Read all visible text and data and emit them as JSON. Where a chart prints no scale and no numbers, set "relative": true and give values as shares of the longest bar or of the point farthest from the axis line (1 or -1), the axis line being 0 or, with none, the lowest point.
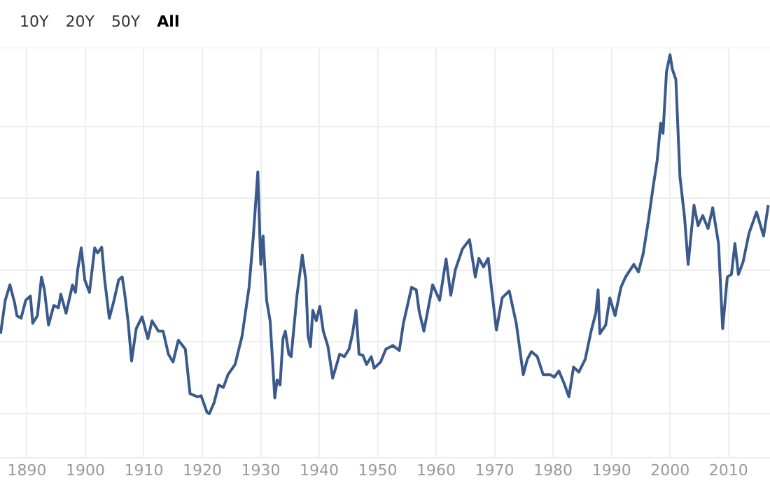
{
  "chart_data": {
    "type": "line",
    "relative": true,
    "annotations": [
      "10Y",
      "20Y",
      "50Y",
      "All"
    ],
    "xlim": [
      1885.4,
      2017.1
    ],
    "xticks": [
      1890,
      1900,
      1910,
      1920,
      1930,
      1940,
      1950,
      1960,
      1970,
      1980,
      1990,
      2000,
      2010
    ],
    "grid": true,
    "legend": false,
    "marker": "none",
    "line_style": "solid",
    "series": [
      {
        "color": "#3a5a8c",
        "x": [
          1885.5,
          1886.3,
          1887.1,
          1887.9,
          1888.3,
          1889,
          1889.8,
          1890.6,
          1891,
          1891.8,
          1892.5,
          1893,
          1893.7,
          1894.6,
          1895.4,
          1895.8,
          1896.7,
          1897.8,
          1898.3,
          1898.7,
          1899.3,
          1899.9,
          1900.7,
          1901.6,
          1902.1,
          1902.8,
          1903.3,
          1904.1,
          1904.9,
          1905.7,
          1906.3,
          1906.7,
          1907.3,
          1907.9,
          1908.7,
          1909.7,
          1910.7,
          1911.4,
          1912.5,
          1913.3,
          1914.2,
          1915,
          1915.9,
          1917.1,
          1917.9,
          1919.2,
          1919.8,
          1920.8,
          1921.2,
          1922,
          1922.8,
          1923.6,
          1924.4,
          1925.6,
          1926.8,
          1928,
          1928.7,
          1929.5,
          1930,
          1930.4,
          1931,
          1931.6,
          1932.4,
          1932.8,
          1933.3,
          1933.8,
          1934.2,
          1934.8,
          1935.2,
          1936.2,
          1937.1,
          1937.7,
          1938.1,
          1938.5,
          1938.9,
          1939.5,
          1940.1,
          1940.7,
          1941.5,
          1942.3,
          1943.5,
          1944.3,
          1945.1,
          1945.7,
          1946.3,
          1946.8,
          1947.5,
          1948.1,
          1948.9,
          1949.4,
          1950.5,
          1951.4,
          1952.6,
          1953.7,
          1954.4,
          1955.8,
          1956.6,
          1957.1,
          1957.9,
          1959.4,
          1960.6,
          1961.7,
          1962.5,
          1963.3,
          1964.5,
          1965.7,
          1966.7,
          1967.3,
          1968.1,
          1968.9,
          1969.5,
          1970.3,
          1971.3,
          1972.5,
          1973.7,
          1974.9,
          1975.6,
          1976.3,
          1977.3,
          1978.3,
          1979.5,
          1980.2,
          1981,
          1981.9,
          1982.7,
          1983.5,
          1984.4,
          1985.5,
          1986.5,
          1987.3,
          1987.7,
          1988,
          1989,
          1989.7,
          1990.6,
          1991.6,
          1992.4,
          1993.8,
          1994.6,
          1995.4,
          1996.3,
          1997.1,
          1997.8,
          1998.4,
          1998.8,
          1999.4,
          2000,
          2000.4,
          2001,
          2001.7,
          2002.5,
          2003.1,
          2004.1,
          2004.8,
          2005.6,
          2006.5,
          2007.3,
          2008.3,
          2009,
          2009.8,
          2010.5,
          2011.1,
          2011.7,
          2012.5,
          2013.5,
          2014.8,
          2016,
          2016.8
        ],
        "values": [
          0.223,
          0.316,
          0.359,
          0.309,
          0.273,
          0.266,
          0.316,
          0.328,
          0.252,
          0.273,
          0.381,
          0.345,
          0.247,
          0.302,
          0.295,
          0.333,
          0.28,
          0.359,
          0.338,
          0.402,
          0.462,
          0.373,
          0.338,
          0.462,
          0.448,
          0.464,
          0.373,
          0.266,
          0.316,
          0.373,
          0.381,
          0.338,
          0.259,
          0.147,
          0.237,
          0.27,
          0.209,
          0.259,
          0.23,
          0.23,
          0.166,
          0.144,
          0.205,
          0.18,
          0.056,
          0.047,
          0.05,
          0.004,
          0,
          0.03,
          0.08,
          0.073,
          0.109,
          0.137,
          0.216,
          0.352,
          0.488,
          0.674,
          0.416,
          0.495,
          0.316,
          0.259,
          0.044,
          0.094,
          0.08,
          0.209,
          0.23,
          0.166,
          0.159,
          0.33,
          0.442,
          0.373,
          0.216,
          0.187,
          0.288,
          0.259,
          0.299,
          0.23,
          0.187,
          0.099,
          0.166,
          0.159,
          0.18,
          0.223,
          0.288,
          0.166,
          0.162,
          0.137,
          0.159,
          0.127,
          0.144,
          0.18,
          0.19,
          0.176,
          0.252,
          0.352,
          0.345,
          0.285,
          0.23,
          0.359,
          0.316,
          0.431,
          0.33,
          0.402,
          0.459,
          0.485,
          0.381,
          0.433,
          0.409,
          0.433,
          0.345,
          0.233,
          0.323,
          0.342,
          0.252,
          0.109,
          0.152,
          0.173,
          0.159,
          0.109,
          0.109,
          0.102,
          0.119,
          0.084,
          0.047,
          0.13,
          0.116,
          0.152,
          0.23,
          0.28,
          0.345,
          0.223,
          0.247,
          0.323,
          0.273,
          0.352,
          0.381,
          0.416,
          0.395,
          0.445,
          0.538,
          0.631,
          0.705,
          0.81,
          0.781,
          0.953,
          1,
          0.96,
          0.931,
          0.66,
          0.545,
          0.416,
          0.581,
          0.524,
          0.552,
          0.516,
          0.574,
          0.474,
          0.237,
          0.381,
          0.388,
          0.474,
          0.388,
          0.423,
          0.502,
          0.562,
          0.495,
          0.581
        ]
      }
    ]
  }
}
